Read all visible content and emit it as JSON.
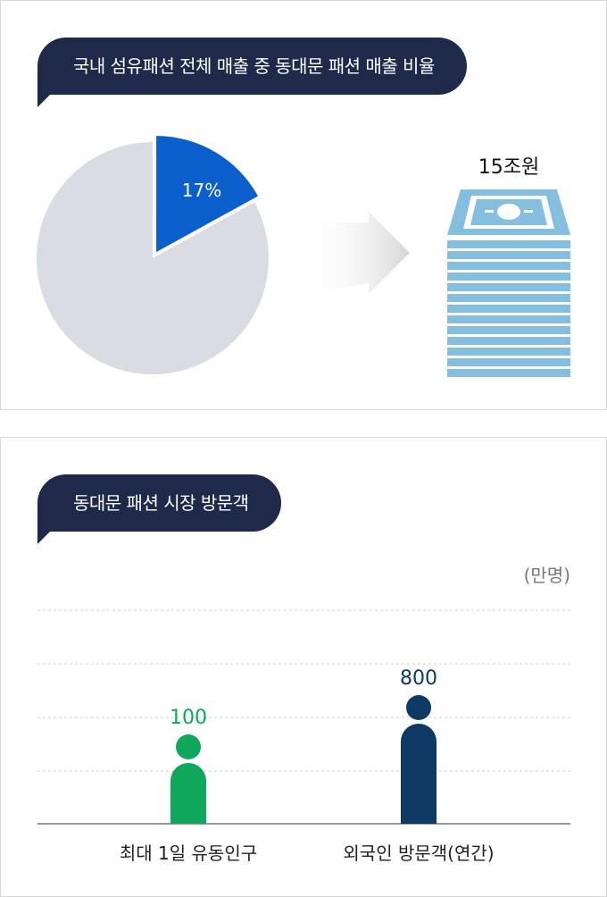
{
  "colors": {
    "navy": "#1f2a4a",
    "pie_highlight": "#0a5fcc",
    "pie_rest": "#d9dde3",
    "money_blue": "#84bfe0",
    "green": "#0fa85a",
    "dark_blue": "#0c3a63"
  },
  "panel1": {
    "title": "국내 섬유패션 전체 매출 중 동대문 패션 매출 비율",
    "pie_label": "17%",
    "money_label": "15조원",
    "icons": [
      "pie-chart-icon",
      "arrow-right-icon",
      "money-stack-icon"
    ]
  },
  "panel2": {
    "title": "동대문 패션 시장 방문객",
    "unit": "(만명)"
  },
  "chart_data": [
    {
      "type": "pie",
      "title": "국내 섬유패션 전체 매출 중 동대문 패션 매출 비율",
      "slices": [
        {
          "label": "17%",
          "value": 17,
          "color": "#0a5fcc"
        },
        {
          "label": "",
          "value": 83,
          "color": "#d9dde3"
        }
      ],
      "annotation": "15조원"
    },
    {
      "type": "bar",
      "title": "동대문 패션 시장 방문객",
      "ylabel": "(만명)",
      "categories": [
        "최대 1일 유동인구",
        "외국인 방문객(연간)"
      ],
      "values": [
        100,
        800
      ],
      "value_labels": [
        "100",
        "800"
      ],
      "colors": [
        "#0fa85a",
        "#0c3a63"
      ],
      "grid": true,
      "note": "bars drawn as person icons; heights not proportional"
    }
  ]
}
